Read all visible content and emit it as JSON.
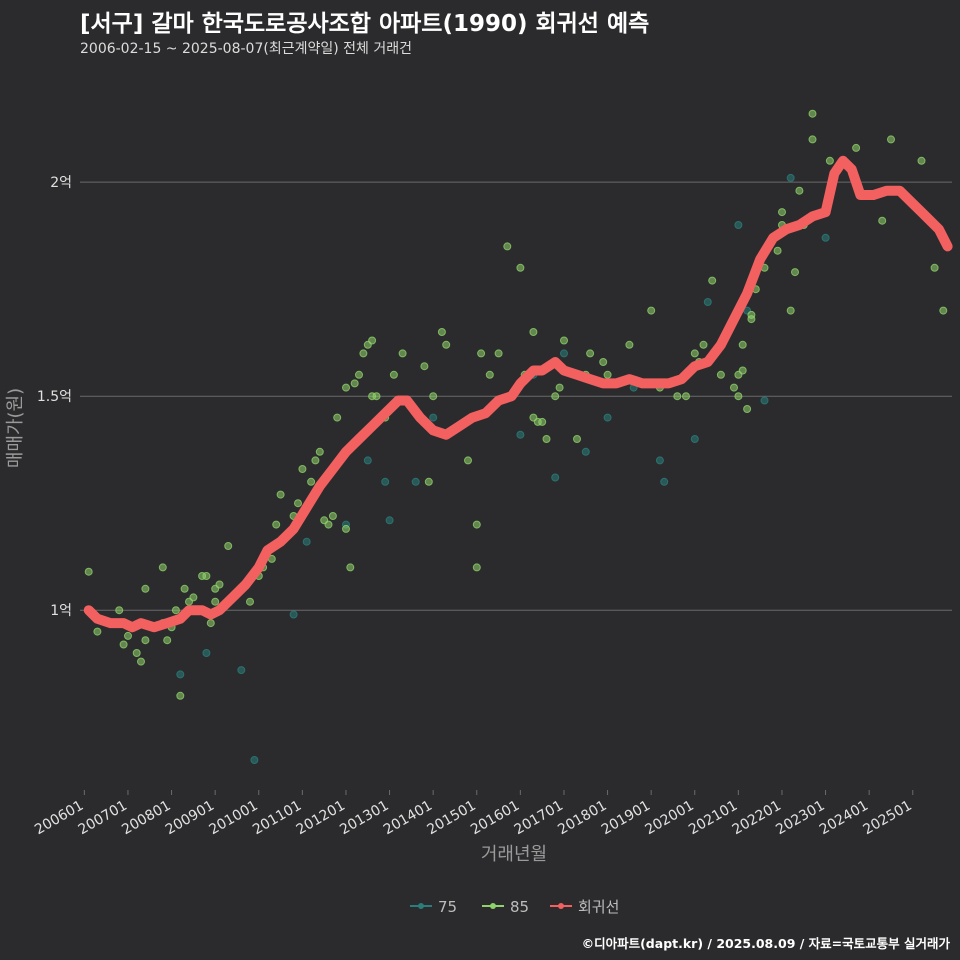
{
  "title": "[서구] 갈마 한국도로공사조합 아파트(1990) 회귀선 예측",
  "subtitle": "2006-02-15 ~ 2025-08-07(최근계약일) 전체 거래건",
  "caption": "©디아파트(dapt.kr) / 2025.08.09 / 자료=국토교통부 실거래가",
  "colors": {
    "background": "#2b2b2d",
    "grid": "#6a6a6a",
    "s75": "#2a7d7a",
    "s85": "#8fd16a",
    "regression": "#f26060",
    "text": "#e0e0e0",
    "axis_title": "#9a9a9a"
  },
  "chart_data": {
    "type": "scatter",
    "xlabel": "거래년월",
    "ylabel": "매매가(원)",
    "x_ticks": [
      "200601",
      "200701",
      "200801",
      "200901",
      "201001",
      "201101",
      "201201",
      "201301",
      "201401",
      "201501",
      "201601",
      "201701",
      "201801",
      "201901",
      "202001",
      "202101",
      "202201",
      "202301",
      "202401",
      "202501"
    ],
    "y_ticks": [
      {
        "value": 1.0,
        "label": "1억"
      },
      {
        "value": 1.5,
        "label": "1.5억"
      },
      {
        "value": 2.0,
        "label": "2억"
      }
    ],
    "xlim": [
      2005.9,
      2025.9
    ],
    "ylim": [
      0.58,
      2.22
    ],
    "grid": true,
    "legend_position": "bottom",
    "legend": [
      {
        "key": "s75",
        "label": "75"
      },
      {
        "key": "s85",
        "label": "85"
      },
      {
        "key": "regression",
        "label": "회귀선"
      }
    ],
    "series": [
      {
        "name": "75",
        "key": "s75",
        "points": [
          [
            2008.2,
            0.85
          ],
          [
            2008.8,
            0.9
          ],
          [
            2009.6,
            0.86
          ],
          [
            2009.9,
            0.65
          ],
          [
            2010.8,
            0.99
          ],
          [
            2011.1,
            1.16
          ],
          [
            2012.0,
            1.2
          ],
          [
            2012.5,
            1.35
          ],
          [
            2012.9,
            1.3
          ],
          [
            2013.0,
            1.21
          ],
          [
            2013.6,
            1.3
          ],
          [
            2014.0,
            1.45
          ],
          [
            2016.0,
            1.41
          ],
          [
            2016.8,
            1.31
          ],
          [
            2017.0,
            1.6
          ],
          [
            2017.5,
            1.37
          ],
          [
            2018.0,
            1.45
          ],
          [
            2019.2,
            1.35
          ],
          [
            2019.3,
            1.3
          ],
          [
            2020.0,
            1.4
          ],
          [
            2020.3,
            1.72
          ],
          [
            2021.2,
            1.7
          ],
          [
            2021.6,
            1.49
          ],
          [
            2022.2,
            2.01
          ],
          [
            2023.0,
            1.87
          ],
          [
            2016.3,
            1.55
          ],
          [
            2018.6,
            1.52
          ],
          [
            2021.0,
            1.9
          ]
        ]
      },
      {
        "name": "85",
        "key": "s85",
        "points": [
          [
            2006.1,
            1.09
          ],
          [
            2006.3,
            0.95
          ],
          [
            2006.6,
            0.97
          ],
          [
            2006.8,
            1.0
          ],
          [
            2006.9,
            0.92
          ],
          [
            2007.0,
            0.94
          ],
          [
            2007.2,
            0.9
          ],
          [
            2007.3,
            0.88
          ],
          [
            2007.4,
            0.93
          ],
          [
            2007.4,
            1.05
          ],
          [
            2007.8,
            0.97
          ],
          [
            2007.8,
            1.1
          ],
          [
            2007.9,
            0.93
          ],
          [
            2008.0,
            0.96
          ],
          [
            2008.1,
            1.0
          ],
          [
            2008.2,
            0.8
          ],
          [
            2008.3,
            1.05
          ],
          [
            2008.4,
            1.02
          ],
          [
            2008.5,
            1.03
          ],
          [
            2008.7,
            1.08
          ],
          [
            2008.8,
            1.08
          ],
          [
            2008.9,
            0.97
          ],
          [
            2009.0,
            1.02
          ],
          [
            2009.0,
            1.05
          ],
          [
            2009.1,
            1.06
          ],
          [
            2009.3,
            1.15
          ],
          [
            2009.8,
            1.02
          ],
          [
            2010.0,
            1.08
          ],
          [
            2010.1,
            1.1
          ],
          [
            2010.3,
            1.12
          ],
          [
            2010.4,
            1.2
          ],
          [
            2010.5,
            1.27
          ],
          [
            2010.8,
            1.22
          ],
          [
            2010.9,
            1.25
          ],
          [
            2011.0,
            1.33
          ],
          [
            2011.2,
            1.3
          ],
          [
            2011.3,
            1.35
          ],
          [
            2011.4,
            1.37
          ],
          [
            2011.5,
            1.21
          ],
          [
            2011.6,
            1.2
          ],
          [
            2011.7,
            1.22
          ],
          [
            2011.8,
            1.45
          ],
          [
            2012.0,
            1.19
          ],
          [
            2012.0,
            1.52
          ],
          [
            2012.1,
            1.1
          ],
          [
            2012.2,
            1.53
          ],
          [
            2012.3,
            1.55
          ],
          [
            2012.4,
            1.6
          ],
          [
            2012.5,
            1.62
          ],
          [
            2012.6,
            1.63
          ],
          [
            2012.6,
            1.5
          ],
          [
            2012.7,
            1.5
          ],
          [
            2012.9,
            1.45
          ],
          [
            2013.1,
            1.55
          ],
          [
            2013.3,
            1.6
          ],
          [
            2013.8,
            1.57
          ],
          [
            2013.9,
            1.3
          ],
          [
            2014.0,
            1.5
          ],
          [
            2014.2,
            1.65
          ],
          [
            2014.3,
            1.62
          ],
          [
            2014.8,
            1.35
          ],
          [
            2015.0,
            1.2
          ],
          [
            2015.0,
            1.1
          ],
          [
            2015.1,
            1.6
          ],
          [
            2015.3,
            1.55
          ],
          [
            2015.5,
            1.6
          ],
          [
            2015.7,
            1.85
          ],
          [
            2016.0,
            1.8
          ],
          [
            2016.1,
            1.55
          ],
          [
            2016.3,
            1.65
          ],
          [
            2016.3,
            1.45
          ],
          [
            2016.4,
            1.44
          ],
          [
            2016.5,
            1.44
          ],
          [
            2016.6,
            1.4
          ],
          [
            2016.8,
            1.5
          ],
          [
            2016.9,
            1.52
          ],
          [
            2017.0,
            1.63
          ],
          [
            2017.3,
            1.4
          ],
          [
            2017.5,
            1.55
          ],
          [
            2017.6,
            1.6
          ],
          [
            2017.9,
            1.58
          ],
          [
            2018.0,
            1.55
          ],
          [
            2018.2,
            1.53
          ],
          [
            2018.5,
            1.62
          ],
          [
            2019.0,
            1.7
          ],
          [
            2019.2,
            1.52
          ],
          [
            2019.6,
            1.5
          ],
          [
            2019.8,
            1.5
          ],
          [
            2020.0,
            1.6
          ],
          [
            2020.1,
            1.58
          ],
          [
            2020.2,
            1.62
          ],
          [
            2020.4,
            1.77
          ],
          [
            2020.6,
            1.55
          ],
          [
            2020.9,
            1.52
          ],
          [
            2021.0,
            1.55
          ],
          [
            2021.0,
            1.5
          ],
          [
            2021.1,
            1.62
          ],
          [
            2021.1,
            1.56
          ],
          [
            2021.2,
            1.47
          ],
          [
            2021.3,
            1.68
          ],
          [
            2021.3,
            1.69
          ],
          [
            2021.4,
            1.75
          ],
          [
            2021.6,
            1.8
          ],
          [
            2021.9,
            1.84
          ],
          [
            2022.0,
            1.9
          ],
          [
            2022.0,
            1.93
          ],
          [
            2022.2,
            1.7
          ],
          [
            2022.3,
            1.79
          ],
          [
            2022.4,
            1.98
          ],
          [
            2022.5,
            1.9
          ],
          [
            2022.7,
            2.16
          ],
          [
            2022.7,
            2.1
          ],
          [
            2023.1,
            2.05
          ],
          [
            2023.2,
            2.01
          ],
          [
            2023.7,
            2.08
          ],
          [
            2024.3,
            1.91
          ],
          [
            2024.5,
            2.1
          ],
          [
            2025.2,
            2.05
          ],
          [
            2025.5,
            1.8
          ],
          [
            2025.7,
            1.7
          ]
        ]
      },
      {
        "name": "회귀선",
        "key": "regression",
        "points": [
          [
            2006.1,
            1.0
          ],
          [
            2006.3,
            0.98
          ],
          [
            2006.6,
            0.97
          ],
          [
            2006.9,
            0.97
          ],
          [
            2007.1,
            0.96
          ],
          [
            2007.3,
            0.97
          ],
          [
            2007.6,
            0.96
          ],
          [
            2007.9,
            0.97
          ],
          [
            2008.2,
            0.98
          ],
          [
            2008.4,
            1.0
          ],
          [
            2008.7,
            1.0
          ],
          [
            2008.9,
            0.99
          ],
          [
            2009.1,
            1.0
          ],
          [
            2009.4,
            1.03
          ],
          [
            2009.7,
            1.06
          ],
          [
            2010.0,
            1.1
          ],
          [
            2010.2,
            1.14
          ],
          [
            2010.5,
            1.16
          ],
          [
            2010.8,
            1.19
          ],
          [
            2011.1,
            1.24
          ],
          [
            2011.4,
            1.29
          ],
          [
            2011.7,
            1.33
          ],
          [
            2012.0,
            1.37
          ],
          [
            2012.3,
            1.4
          ],
          [
            2012.6,
            1.43
          ],
          [
            2012.9,
            1.46
          ],
          [
            2013.2,
            1.49
          ],
          [
            2013.4,
            1.49
          ],
          [
            2013.7,
            1.45
          ],
          [
            2014.0,
            1.42
          ],
          [
            2014.3,
            1.41
          ],
          [
            2014.6,
            1.43
          ],
          [
            2014.9,
            1.45
          ],
          [
            2015.2,
            1.46
          ],
          [
            2015.5,
            1.49
          ],
          [
            2015.8,
            1.5
          ],
          [
            2016.0,
            1.53
          ],
          [
            2016.3,
            1.56
          ],
          [
            2016.5,
            1.56
          ],
          [
            2016.8,
            1.58
          ],
          [
            2017.0,
            1.56
          ],
          [
            2017.3,
            1.55
          ],
          [
            2017.6,
            1.54
          ],
          [
            2017.9,
            1.53
          ],
          [
            2018.2,
            1.53
          ],
          [
            2018.5,
            1.54
          ],
          [
            2018.8,
            1.53
          ],
          [
            2019.1,
            1.53
          ],
          [
            2019.4,
            1.53
          ],
          [
            2019.7,
            1.54
          ],
          [
            2020.0,
            1.57
          ],
          [
            2020.3,
            1.58
          ],
          [
            2020.6,
            1.62
          ],
          [
            2020.9,
            1.68
          ],
          [
            2021.2,
            1.74
          ],
          [
            2021.5,
            1.82
          ],
          [
            2021.8,
            1.87
          ],
          [
            2022.1,
            1.89
          ],
          [
            2022.4,
            1.9
          ],
          [
            2022.7,
            1.92
          ],
          [
            2023.0,
            1.93
          ],
          [
            2023.2,
            2.02
          ],
          [
            2023.4,
            2.05
          ],
          [
            2023.6,
            2.03
          ],
          [
            2023.8,
            1.97
          ],
          [
            2024.1,
            1.97
          ],
          [
            2024.4,
            1.98
          ],
          [
            2024.7,
            1.98
          ],
          [
            2025.0,
            1.95
          ],
          [
            2025.2,
            1.93
          ],
          [
            2025.4,
            1.91
          ],
          [
            2025.6,
            1.89
          ],
          [
            2025.8,
            1.85
          ]
        ]
      }
    ]
  }
}
